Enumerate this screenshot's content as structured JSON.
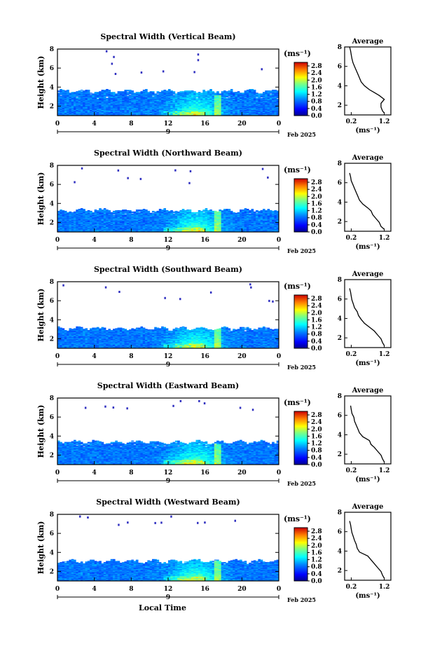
{
  "chart_data": [
    {
      "type": "heatmap",
      "title": "Spectral Width (Vertical Beam)",
      "ylabel": "Height (km)",
      "x_ticks": [
        "0",
        "4",
        "8",
        "12",
        "16",
        "20",
        "0"
      ],
      "x_range": [
        0,
        24
      ],
      "y_ticks": [
        "2",
        "4",
        "6",
        "8"
      ],
      "y_range": [
        1,
        8
      ],
      "day_label": "9",
      "date_label": "Feb 2025",
      "colorbar": {
        "unit": "(ms⁻¹)",
        "ticks": [
          "0.0",
          "0.4",
          "0.8",
          "1.2",
          "1.6",
          "2.0",
          "2.4",
          "2.8"
        ],
        "range": [
          0,
          3.0
        ]
      },
      "average": {
        "title": "Average",
        "xlabel": "(ms⁻¹)",
        "x_ticks": [
          "0.2",
          "1.2"
        ],
        "x_range": [
          0,
          1.4
        ],
        "y_ticks": [
          "2",
          "4",
          "6",
          "8"
        ],
        "y_range": [
          1,
          8
        ],
        "profile": [
          [
            1.2,
            1.2
          ],
          [
            1.4,
            1.15
          ],
          [
            1.8,
            1.1
          ],
          [
            2.2,
            1.1
          ],
          [
            2.6,
            1.2
          ],
          [
            3.0,
            1.05
          ],
          [
            3.3,
            0.9
          ],
          [
            3.6,
            0.75
          ],
          [
            4.0,
            0.6
          ],
          [
            4.4,
            0.5
          ],
          [
            4.8,
            0.45
          ],
          [
            5.2,
            0.4
          ],
          [
            5.6,
            0.35
          ],
          [
            6.0,
            0.3
          ],
          [
            6.4,
            0.25
          ],
          [
            6.8,
            0.22
          ],
          [
            7.2,
            0.2
          ],
          [
            7.6,
            0.18
          ],
          [
            8.0,
            0.15
          ]
        ]
      },
      "cloud_top_km": 3.8,
      "sparse_band": [
        5.4,
        8
      ]
    },
    {
      "type": "heatmap",
      "title": "Spectral Width (Northward Beam)",
      "ylabel": "Height (km)",
      "x_ticks": [
        "0",
        "4",
        "8",
        "12",
        "16",
        "20",
        "0"
      ],
      "x_range": [
        0,
        24
      ],
      "y_ticks": [
        "2",
        "4",
        "6",
        "8"
      ],
      "y_range": [
        1,
        8
      ],
      "day_label": "9",
      "date_label": "Feb 2025",
      "colorbar": {
        "unit": "(ms⁻¹)",
        "ticks": [
          "0.0",
          "0.4",
          "0.8",
          "1.2",
          "1.6",
          "2.0",
          "2.4",
          "2.8"
        ],
        "range": [
          0,
          3.0
        ]
      },
      "average": {
        "title": "Average",
        "xlabel": "(ms⁻¹)",
        "x_ticks": [
          "0.2",
          "1.2"
        ],
        "x_range": [
          0,
          1.4
        ],
        "y_ticks": [
          "2",
          "4",
          "6",
          "8"
        ],
        "y_range": [
          1,
          8
        ],
        "profile": [
          [
            1.2,
            1.2
          ],
          [
            1.5,
            1.1
          ],
          [
            1.9,
            1.05
          ],
          [
            2.3,
            0.95
          ],
          [
            2.7,
            0.85
          ],
          [
            3.1,
            0.8
          ],
          [
            3.4,
            0.7
          ],
          [
            3.8,
            0.55
          ],
          [
            4.2,
            0.45
          ],
          [
            4.6,
            0.4
          ],
          [
            5.0,
            0.35
          ],
          [
            5.4,
            0.3
          ],
          [
            5.8,
            0.25
          ],
          [
            6.2,
            0.2
          ],
          [
            6.6,
            0.18
          ],
          [
            7.0,
            0.15
          ]
        ]
      },
      "cloud_top_km": 3.5,
      "sparse_band": [
        6.0,
        8
      ]
    },
    {
      "type": "heatmap",
      "title": "Spectral Width (Southward Beam)",
      "ylabel": "Height (km)",
      "x_ticks": [
        "0",
        "4",
        "8",
        "12",
        "16",
        "20",
        "0"
      ],
      "x_range": [
        0,
        24
      ],
      "y_ticks": [
        "2",
        "4",
        "6",
        "8"
      ],
      "y_range": [
        1,
        8
      ],
      "day_label": "9",
      "date_label": "Feb 2025",
      "colorbar": {
        "unit": "(ms⁻¹)",
        "ticks": [
          "0.0",
          "0.4",
          "0.8",
          "1.2",
          "1.6",
          "2.0",
          "2.4",
          "2.8"
        ],
        "range": [
          0,
          3.0
        ]
      },
      "average": {
        "title": "Average",
        "xlabel": "(ms⁻¹)",
        "x_ticks": [
          "0.2",
          "1.2"
        ],
        "x_range": [
          0,
          1.4
        ],
        "y_ticks": [
          "2",
          "4",
          "6",
          "8"
        ],
        "y_range": [
          1,
          8
        ],
        "profile": [
          [
            1.2,
            1.2
          ],
          [
            1.5,
            1.15
          ],
          [
            1.9,
            1.1
          ],
          [
            2.3,
            1.0
          ],
          [
            2.7,
            0.9
          ],
          [
            3.1,
            0.75
          ],
          [
            3.5,
            0.6
          ],
          [
            3.9,
            0.5
          ],
          [
            4.3,
            0.42
          ],
          [
            4.7,
            0.38
          ],
          [
            5.1,
            0.3
          ],
          [
            5.5,
            0.26
          ],
          [
            5.9,
            0.22
          ],
          [
            6.3,
            0.2
          ],
          [
            6.7,
            0.18
          ],
          [
            7.1,
            0.15
          ]
        ]
      },
      "cloud_top_km": 3.3,
      "sparse_band": [
        6.0,
        8
      ]
    },
    {
      "type": "heatmap",
      "title": "Spectral Width (Eastward Beam)",
      "ylabel": "Height (km)",
      "x_ticks": [
        "0",
        "4",
        "8",
        "12",
        "16",
        "20",
        "0"
      ],
      "x_range": [
        0,
        24
      ],
      "y_ticks": [
        "2",
        "4",
        "6",
        "8"
      ],
      "y_range": [
        1,
        8
      ],
      "day_label": "9",
      "date_label": "Feb 2025",
      "colorbar": {
        "unit": "(ms⁻¹)",
        "ticks": [
          "0.0",
          "0.4",
          "0.8",
          "1.2",
          "1.6",
          "2.0",
          "2.4",
          "2.8"
        ],
        "range": [
          0,
          3.0
        ]
      },
      "average": {
        "title": "Average",
        "xlabel": "(ms⁻¹)",
        "x_ticks": [
          "0.2",
          "1.2"
        ],
        "x_range": [
          0,
          1.4
        ],
        "y_ticks": [
          "2",
          "4",
          "6",
          "8"
        ],
        "y_range": [
          1,
          8
        ],
        "profile": [
          [
            1.2,
            1.2
          ],
          [
            1.5,
            1.15
          ],
          [
            1.9,
            1.1
          ],
          [
            2.3,
            1.0
          ],
          [
            2.7,
            0.9
          ],
          [
            3.0,
            0.8
          ],
          [
            3.4,
            0.75
          ],
          [
            3.8,
            0.55
          ],
          [
            4.2,
            0.45
          ],
          [
            4.6,
            0.4
          ],
          [
            5.0,
            0.35
          ],
          [
            5.4,
            0.3
          ],
          [
            5.8,
            0.28
          ],
          [
            6.2,
            0.22
          ],
          [
            6.6,
            0.2
          ],
          [
            7.0,
            0.18
          ]
        ]
      },
      "cloud_top_km": 3.6,
      "sparse_band": [
        6.8,
        8
      ]
    },
    {
      "type": "heatmap",
      "title": "Spectral Width (Westward Beam)",
      "ylabel": "Height (km)",
      "x_ticks": [
        "0",
        "4",
        "8",
        "12",
        "16",
        "20",
        "0"
      ],
      "x_range": [
        0,
        24
      ],
      "xlabel": "Local Time",
      "y_ticks": [
        "2",
        "4",
        "6",
        "8"
      ],
      "y_range": [
        1,
        8
      ],
      "day_label": "9",
      "date_label": "Feb 2025",
      "colorbar": {
        "unit": "(ms⁻¹)",
        "ticks": [
          "0.0",
          "0.4",
          "0.8",
          "1.2",
          "1.6",
          "2.0",
          "2.4",
          "2.8"
        ],
        "range": [
          0,
          3.0
        ]
      },
      "average": {
        "title": "Average",
        "xlabel": "(ms⁻¹)",
        "x_ticks": [
          "0.2",
          "1.2"
        ],
        "x_range": [
          0,
          1.4
        ],
        "y_ticks": [
          "2",
          "4",
          "6",
          "8"
        ],
        "y_range": [
          1,
          8
        ],
        "profile": [
          [
            1.2,
            1.2
          ],
          [
            1.5,
            1.15
          ],
          [
            1.9,
            1.1
          ],
          [
            2.3,
            1.0
          ],
          [
            2.7,
            0.9
          ],
          [
            3.1,
            0.8
          ],
          [
            3.5,
            0.7
          ],
          [
            3.9,
            0.45
          ],
          [
            4.3,
            0.38
          ],
          [
            4.7,
            0.35
          ],
          [
            5.1,
            0.3
          ],
          [
            5.5,
            0.26
          ],
          [
            5.9,
            0.22
          ],
          [
            6.3,
            0.2
          ],
          [
            6.7,
            0.18
          ],
          [
            7.1,
            0.15
          ]
        ]
      },
      "cloud_top_km": 3.3,
      "sparse_band": [
        7.0,
        8
      ]
    }
  ]
}
